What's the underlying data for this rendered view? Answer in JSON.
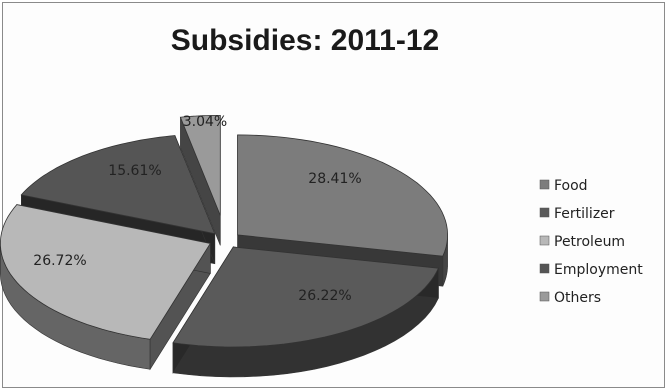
{
  "chart_data": {
    "type": "pie",
    "style": "3d-exploded",
    "title": "Subsidies: 2011-12",
    "categories": [
      "Food",
      "Fertilizer",
      "Petroleum",
      "Employment",
      "Others"
    ],
    "values": [
      28.41,
      26.22,
      26.72,
      15.61,
      3.04
    ],
    "value_labels": [
      "28.41%",
      "26.22%",
      "26.72%",
      "15.61%",
      "3.04%"
    ],
    "legend": {
      "position": "right",
      "entries": [
        "Food",
        "Fertilizer",
        "Petroleum",
        "Employment",
        "Others"
      ]
    },
    "colors": {
      "Food": "#7c7c7c",
      "Fertilizer": "#5a5a5a",
      "Petroleum": "#b8b8b8",
      "Employment": "#555555",
      "Others": "#9a9a9a"
    }
  }
}
